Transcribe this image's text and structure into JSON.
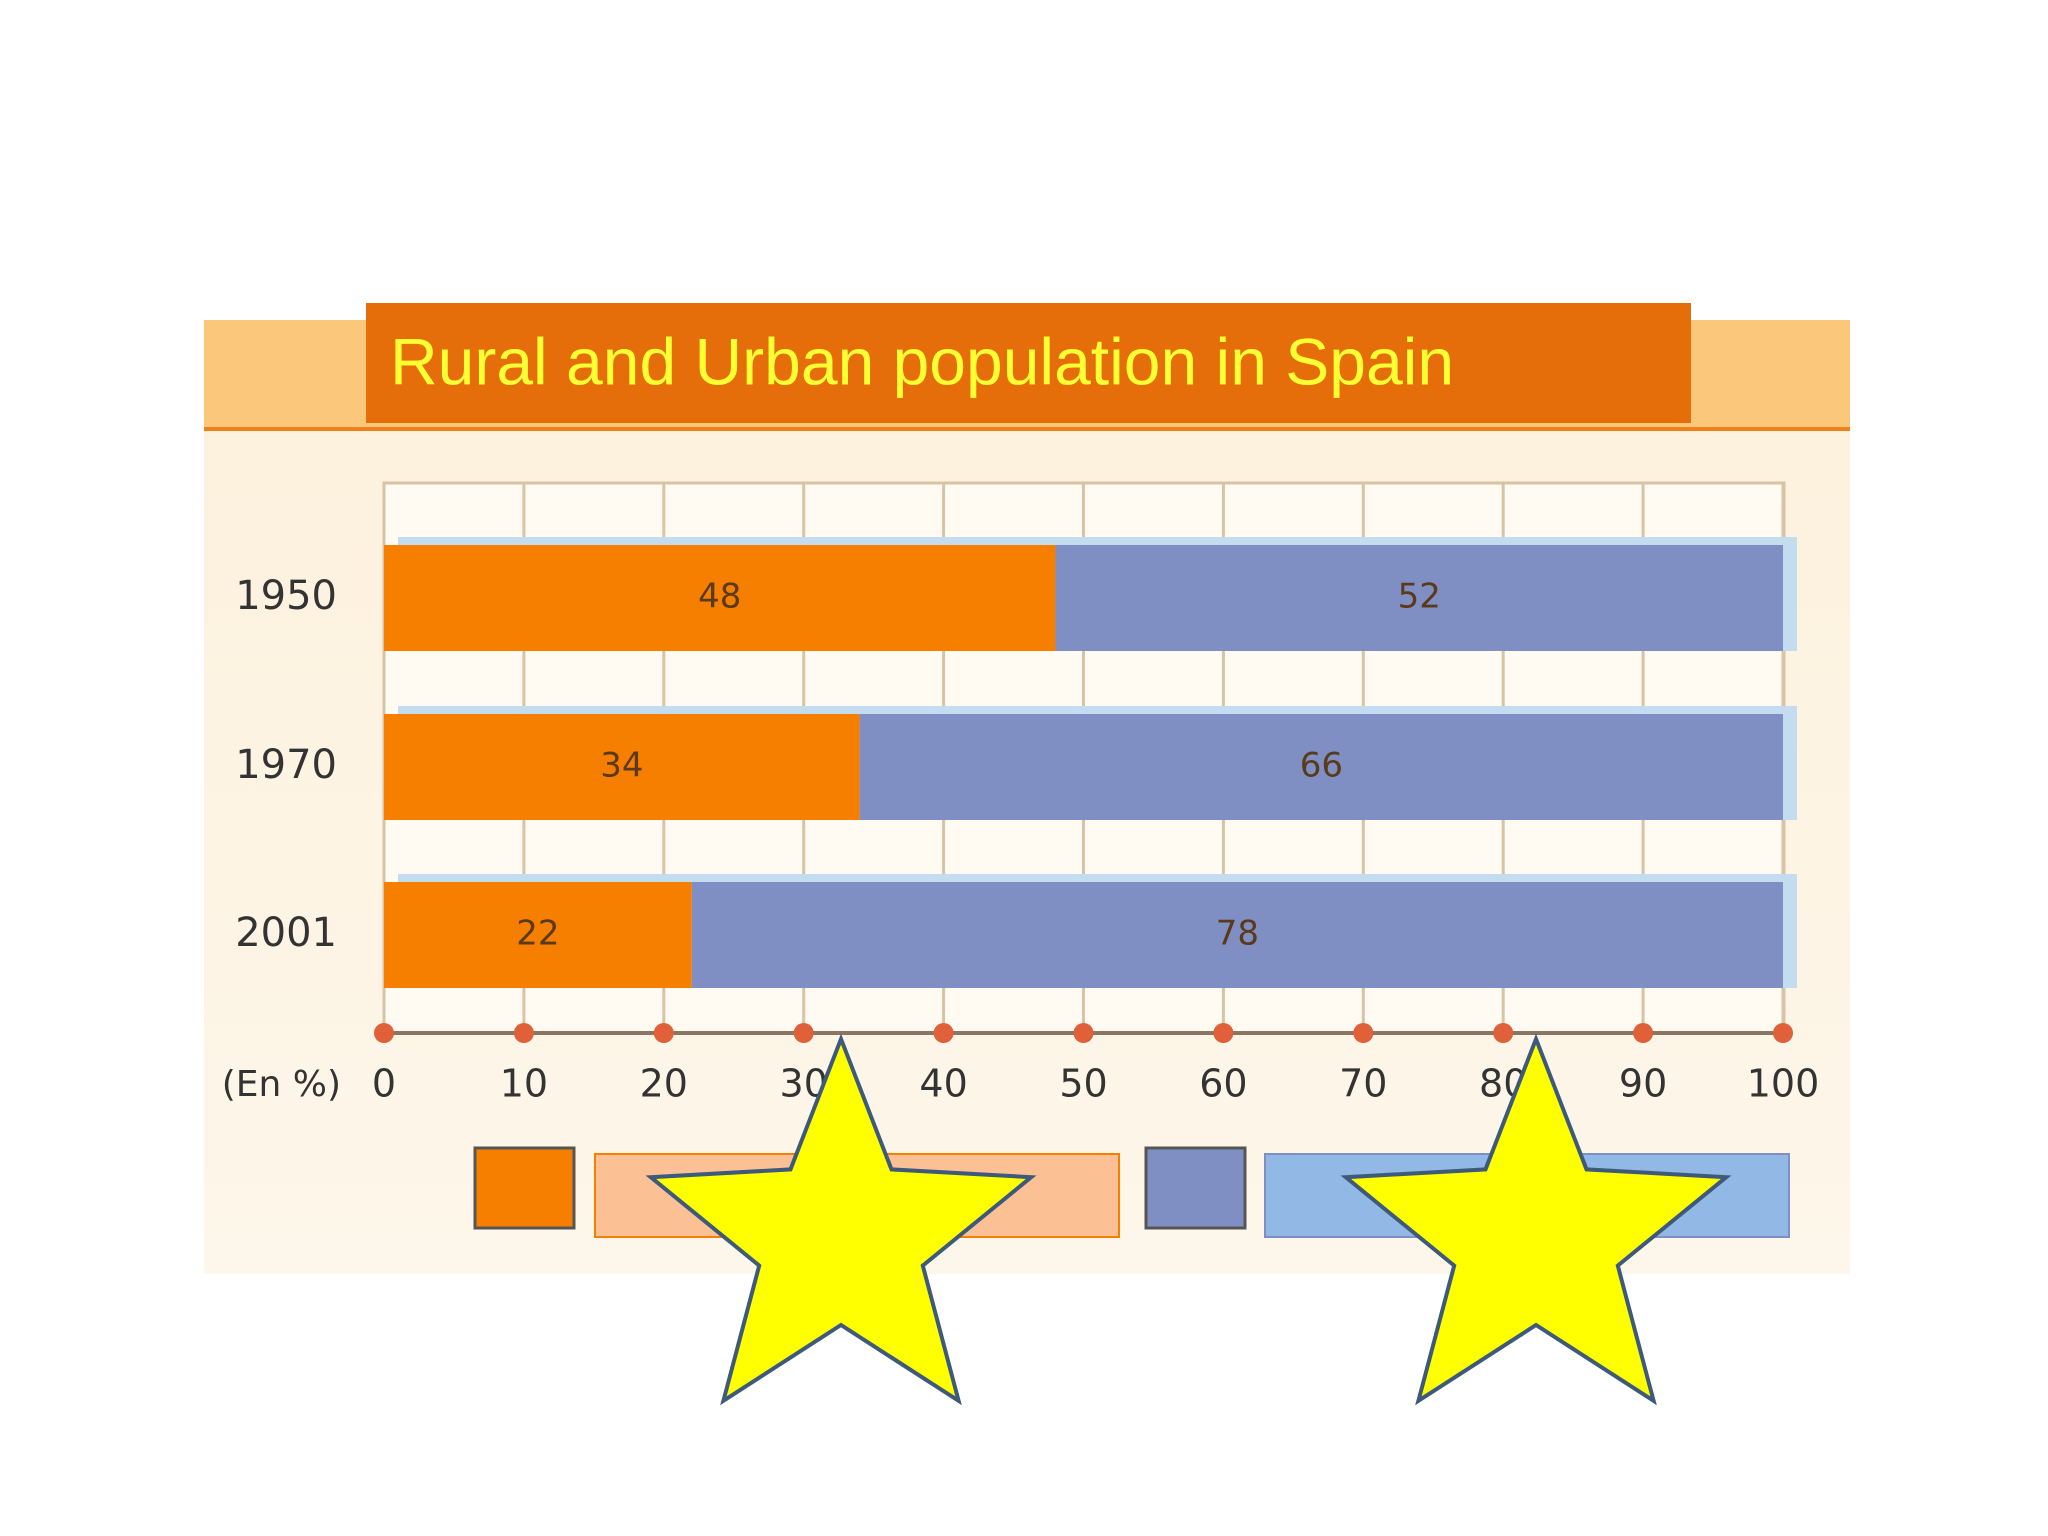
{
  "chart_data": {
    "type": "stacked-bar-horizontal",
    "title": "Rural and Urban population in Spain",
    "categories": [
      "1950",
      "1970",
      "2001"
    ],
    "series": [
      {
        "color": "#f77f00",
        "values": [
          48,
          34,
          22
        ]
      },
      {
        "color": "#7f8fc4",
        "values": [
          52,
          66,
          78
        ]
      }
    ],
    "xlabel": "(En %)",
    "xlim": [
      0,
      100
    ],
    "xticks": [
      0,
      10,
      20,
      30,
      40,
      50,
      60,
      70,
      80,
      90,
      100
    ],
    "grid": true
  }
}
